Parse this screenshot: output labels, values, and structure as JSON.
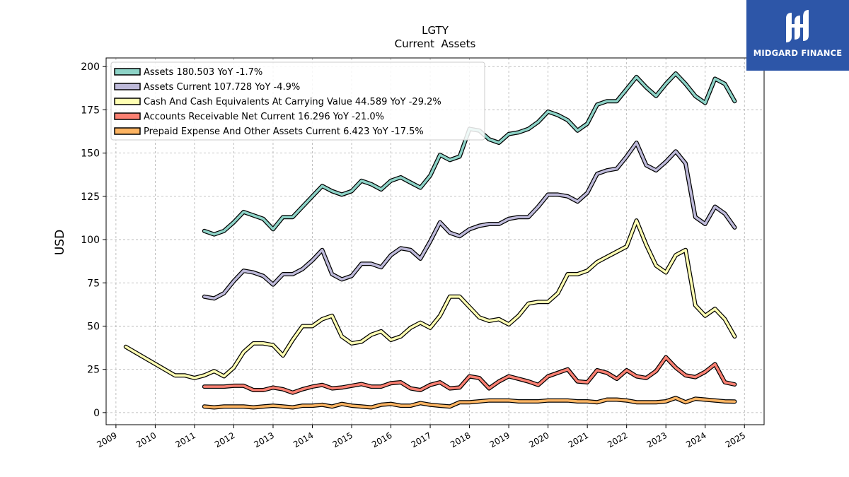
{
  "brand": {
    "name": "MIDGARD FINANCE",
    "bg_color": "#2d56a8"
  },
  "chart_data": {
    "type": "line",
    "title": "LGTY",
    "subtitle": "Current  Assets",
    "ylabel": "USD",
    "xlabel": "",
    "xlim": [
      2008.75,
      2025.5
    ],
    "ylim": [
      -7,
      205
    ],
    "x_ticks": [
      "2009",
      "2010",
      "2011",
      "2012",
      "2013",
      "2014",
      "2015",
      "2016",
      "2017",
      "2018",
      "2019",
      "2020",
      "2021",
      "2022",
      "2023",
      "2024",
      "2025"
    ],
    "y_ticks": [
      "0",
      "25",
      "50",
      "75",
      "100",
      "125",
      "150",
      "175",
      "200"
    ],
    "grid": true,
    "legend_position": "top-left",
    "series": [
      {
        "name": "Assets  180.503 YoY -1.7%",
        "color": "#8dd3c7",
        "x": [
          2011.25,
          2011.5,
          2011.75,
          2012.0,
          2012.25,
          2012.5,
          2012.75,
          2013.0,
          2013.25,
          2013.5,
          2013.75,
          2014.0,
          2014.25,
          2014.5,
          2014.75,
          2015.0,
          2015.25,
          2015.5,
          2015.75,
          2016.0,
          2016.25,
          2016.5,
          2016.75,
          2017.0,
          2017.25,
          2017.5,
          2017.75,
          2018.0,
          2018.25,
          2018.5,
          2018.75,
          2019.0,
          2019.25,
          2019.5,
          2019.75,
          2020.0,
          2020.25,
          2020.5,
          2020.75,
          2021.0,
          2021.25,
          2021.5,
          2021.75,
          2022.0,
          2022.25,
          2022.5,
          2022.75,
          2023.0,
          2023.25,
          2023.5,
          2023.75,
          2024.0,
          2024.25,
          2024.5,
          2024.75
        ],
        "y": [
          105,
          103,
          105,
          110,
          116,
          114,
          112,
          106,
          113,
          113,
          119,
          125,
          131,
          128,
          126,
          128,
          134,
          132,
          129,
          134,
          136,
          133,
          130,
          137,
          149,
          146,
          148,
          164,
          163,
          158,
          156,
          161,
          162,
          164,
          168,
          174,
          172,
          169,
          163,
          167,
          178,
          180,
          180,
          187,
          194,
          188,
          183,
          190,
          196,
          190,
          183,
          179,
          193,
          190,
          180
        ]
      },
      {
        "name": "Assets Current  107.728 YoY -4.9%",
        "color": "#bebada",
        "x": [
          2011.25,
          2011.5,
          2011.75,
          2012.0,
          2012.25,
          2012.5,
          2012.75,
          2013.0,
          2013.25,
          2013.5,
          2013.75,
          2014.0,
          2014.25,
          2014.5,
          2014.75,
          2015.0,
          2015.25,
          2015.5,
          2015.75,
          2016.0,
          2016.25,
          2016.5,
          2016.75,
          2017.0,
          2017.25,
          2017.5,
          2017.75,
          2018.0,
          2018.25,
          2018.5,
          2018.75,
          2019.0,
          2019.25,
          2019.5,
          2019.75,
          2020.0,
          2020.25,
          2020.5,
          2020.75,
          2021.0,
          2021.25,
          2021.5,
          2021.75,
          2022.0,
          2022.25,
          2022.5,
          2022.75,
          2023.0,
          2023.25,
          2023.5,
          2023.75,
          2024.0,
          2024.25,
          2024.5,
          2024.75
        ],
        "y": [
          67,
          66,
          69,
          76,
          82,
          81,
          79,
          74,
          80,
          80,
          83,
          88,
          94,
          80,
          77,
          79,
          86,
          86,
          84,
          91,
          95,
          94,
          89,
          99,
          110,
          104,
          102,
          106,
          108,
          109,
          109,
          112,
          113,
          113,
          119,
          126,
          126,
          125,
          122,
          127,
          138,
          140,
          141,
          148,
          156,
          143,
          140,
          145,
          151,
          144,
          113,
          109,
          119,
          115,
          107
        ]
      },
      {
        "name": "Cash And Cash Equivalents At Carrying Value  44.589 YoY -29.2%",
        "color": "#ffffb3",
        "x": [
          2009.25,
          2010.5,
          2010.75,
          2011.0,
          2011.25,
          2011.5,
          2011.75,
          2012.0,
          2012.25,
          2012.5,
          2012.75,
          2013.0,
          2013.25,
          2013.5,
          2013.75,
          2014.0,
          2014.25,
          2014.5,
          2014.75,
          2015.0,
          2015.25,
          2015.5,
          2015.75,
          2016.0,
          2016.25,
          2016.5,
          2016.75,
          2017.0,
          2017.25,
          2017.5,
          2017.75,
          2018.0,
          2018.25,
          2018.5,
          2018.75,
          2019.0,
          2019.25,
          2019.5,
          2019.75,
          2020.0,
          2020.25,
          2020.5,
          2020.75,
          2021.0,
          2021.25,
          2021.5,
          2021.75,
          2022.0,
          2022.25,
          2022.5,
          2022.75,
          2023.0,
          2023.25,
          2023.5,
          2023.75,
          2024.0,
          2024.25,
          2024.5,
          2024.75
        ],
        "y": [
          38,
          21.5,
          21.5,
          20,
          21.5,
          24,
          21,
          26,
          35,
          40,
          40,
          39,
          33,
          42,
          50,
          50,
          54,
          56,
          44,
          40,
          41,
          45,
          47,
          42,
          44,
          49,
          52,
          49,
          56,
          67,
          67,
          61,
          55,
          53,
          54,
          51,
          56,
          63,
          64,
          64,
          69,
          80,
          80,
          82,
          87,
          90,
          93,
          96,
          111,
          97,
          85,
          81,
          91,
          94,
          62,
          56,
          60,
          54,
          44
        ]
      },
      {
        "name": "Accounts Receivable Net Current  16.296 YoY -21.0%",
        "color": "#fb8072",
        "x": [
          2011.25,
          2011.5,
          2011.75,
          2012.0,
          2012.25,
          2012.5,
          2012.75,
          2013.0,
          2013.25,
          2013.5,
          2013.75,
          2014.0,
          2014.25,
          2014.5,
          2014.75,
          2015.0,
          2015.25,
          2015.5,
          2015.75,
          2016.0,
          2016.25,
          2016.5,
          2016.75,
          2017.0,
          2017.25,
          2017.5,
          2017.75,
          2018.0,
          2018.25,
          2018.5,
          2018.75,
          2019.0,
          2019.25,
          2019.5,
          2019.75,
          2020.0,
          2020.25,
          2020.5,
          2020.75,
          2021.0,
          2021.25,
          2021.5,
          2021.75,
          2022.0,
          2022.25,
          2022.5,
          2022.75,
          2023.0,
          2023.25,
          2023.5,
          2023.75,
          2024.0,
          2024.25,
          2024.5,
          2024.75
        ],
        "y": [
          15,
          15,
          15,
          15.5,
          15.5,
          13,
          13,
          14.5,
          13.5,
          11.5,
          13.5,
          15,
          16,
          14,
          14.5,
          15.5,
          16.5,
          15,
          15,
          17,
          17.5,
          14,
          13,
          16,
          17.5,
          14,
          14.5,
          21,
          20,
          14,
          18,
          21,
          19.5,
          18,
          16,
          21,
          23,
          25,
          18,
          17.5,
          24.5,
          23,
          19.5,
          24.5,
          21,
          20,
          24,
          32,
          26,
          21.5,
          20.5,
          23.5,
          28,
          17.5,
          16.3
        ]
      },
      {
        "name": "Prepaid Expense And Other Assets Current  6.423 YoY -17.5%",
        "color": "#fdb462",
        "x": [
          2011.25,
          2011.5,
          2011.75,
          2012.0,
          2012.25,
          2012.5,
          2012.75,
          2013.0,
          2013.25,
          2013.5,
          2013.75,
          2014.0,
          2014.25,
          2014.5,
          2014.75,
          2015.0,
          2015.25,
          2015.5,
          2015.75,
          2016.0,
          2016.25,
          2016.5,
          2016.75,
          2017.0,
          2017.25,
          2017.5,
          2017.75,
          2018.0,
          2018.25,
          2018.5,
          2018.75,
          2019.0,
          2019.25,
          2019.5,
          2019.75,
          2020.0,
          2020.25,
          2020.5,
          2020.75,
          2021.0,
          2021.25,
          2021.5,
          2021.75,
          2022.0,
          2022.25,
          2022.5,
          2022.75,
          2023.0,
          2023.25,
          2023.5,
          2023.75,
          2024.0,
          2024.25,
          2024.5,
          2024.75
        ],
        "y": [
          3.5,
          3,
          3.5,
          3.5,
          3.5,
          3,
          3.5,
          4,
          3.5,
          3,
          4,
          4,
          4.5,
          3.5,
          5,
          4,
          3.5,
          3,
          4.5,
          5,
          4,
          4,
          5.5,
          4.5,
          4,
          3.5,
          6,
          6,
          6.5,
          7,
          7,
          7,
          6.5,
          6.5,
          6.5,
          7,
          7,
          7,
          6.5,
          6.5,
          6,
          7.5,
          7.5,
          7,
          6,
          6,
          6,
          6.5,
          8.5,
          6,
          8,
          7.5,
          7,
          6.5,
          6.4
        ]
      }
    ]
  }
}
